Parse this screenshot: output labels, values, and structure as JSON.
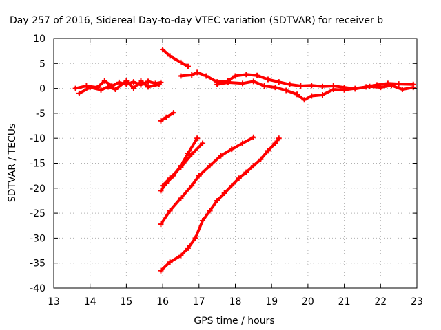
{
  "chart_data": {
    "type": "scatter",
    "title": "Day 257 of 2016, Sidereal Day-to-day VTEC variation (SDTVAR) for receiver b",
    "xlabel": "GPS time / hours",
    "ylabel": "SDTVAR / TECUs",
    "xlim": [
      13,
      23
    ],
    "ylim": [
      -40,
      10
    ],
    "xticks": [
      13,
      14,
      15,
      16,
      17,
      18,
      19,
      20,
      21,
      22,
      23
    ],
    "yticks": [
      10,
      5,
      0,
      -5,
      -10,
      -15,
      -20,
      -25,
      -30,
      -35,
      -40
    ],
    "grid": true,
    "legend": "none",
    "marker": "+",
    "color": "#ff0000",
    "series": [
      {
        "points": [
          [
            13.6,
            0.0
          ],
          [
            13.9,
            0.5
          ],
          [
            14.2,
            0.2
          ],
          [
            14.4,
            1.5
          ],
          [
            14.6,
            0.5
          ],
          [
            14.8,
            1.2
          ],
          [
            15.0,
            0.8
          ],
          [
            15.2,
            1.3
          ],
          [
            15.4,
            0.7
          ],
          [
            15.6,
            1.4
          ],
          [
            15.8,
            1.0
          ],
          [
            15.95,
            1.2
          ]
        ]
      },
      {
        "points": [
          [
            13.7,
            -1.0
          ],
          [
            14.0,
            0.2
          ],
          [
            14.3,
            -0.3
          ],
          [
            14.5,
            0.3
          ],
          [
            14.7,
            -0.2
          ],
          [
            15.0,
            1.5
          ],
          [
            15.2,
            0.0
          ],
          [
            15.4,
            1.5
          ],
          [
            15.6,
            0.3
          ],
          [
            15.9,
            0.8
          ]
        ]
      },
      {
        "points": [
          [
            16.0,
            7.8
          ],
          [
            16.2,
            6.5
          ],
          [
            16.5,
            5.2
          ],
          [
            16.7,
            4.4
          ]
        ]
      },
      {
        "points": [
          [
            16.5,
            2.5
          ],
          [
            16.8,
            2.7
          ],
          [
            16.95,
            3.2
          ],
          [
            17.2,
            2.5
          ],
          [
            17.5,
            1.3
          ],
          [
            17.8,
            1.5
          ],
          [
            18.0,
            2.5
          ],
          [
            18.3,
            2.8
          ],
          [
            18.6,
            2.6
          ],
          [
            18.9,
            1.8
          ],
          [
            19.2,
            1.3
          ],
          [
            19.5,
            0.8
          ],
          [
            19.8,
            0.5
          ],
          [
            20.1,
            0.6
          ],
          [
            20.4,
            0.4
          ],
          [
            20.7,
            0.5
          ],
          [
            21.0,
            0.2
          ],
          [
            21.3,
            -0.1
          ],
          [
            21.6,
            0.3
          ],
          [
            21.9,
            0.7
          ],
          [
            22.2,
            1.0
          ],
          [
            22.5,
            0.9
          ],
          [
            22.9,
            0.8
          ]
        ]
      },
      {
        "points": [
          [
            17.5,
            0.8
          ],
          [
            17.8,
            1.2
          ],
          [
            18.2,
            1.0
          ],
          [
            18.5,
            1.4
          ],
          [
            18.8,
            0.5
          ],
          [
            19.1,
            0.2
          ],
          [
            19.4,
            -0.4
          ],
          [
            19.7,
            -1.2
          ],
          [
            19.9,
            -2.3
          ],
          [
            20.1,
            -1.5
          ],
          [
            20.4,
            -1.3
          ],
          [
            20.7,
            -0.2
          ],
          [
            21.0,
            -0.3
          ],
          [
            21.3,
            0.0
          ],
          [
            21.7,
            0.4
          ],
          [
            22.0,
            0.2
          ],
          [
            22.3,
            0.6
          ],
          [
            22.6,
            -0.2
          ],
          [
            22.9,
            0.2
          ]
        ]
      },
      {
        "points": [
          [
            15.95,
            -6.5
          ],
          [
            16.1,
            -5.8
          ],
          [
            16.3,
            -4.9
          ]
        ]
      },
      {
        "points": [
          [
            15.95,
            -20.5
          ],
          [
            16.1,
            -19.0
          ],
          [
            16.3,
            -17.5
          ],
          [
            16.5,
            -15.5
          ],
          [
            16.7,
            -13.0
          ],
          [
            16.95,
            -10.0
          ]
        ]
      },
      {
        "points": [
          [
            16.0,
            -19.5
          ],
          [
            16.2,
            -18.0
          ],
          [
            16.5,
            -15.8
          ],
          [
            16.8,
            -13.2
          ],
          [
            17.1,
            -11.0
          ]
        ]
      },
      {
        "points": [
          [
            15.95,
            -27.2
          ],
          [
            16.2,
            -24.5
          ],
          [
            16.5,
            -22.0
          ],
          [
            16.8,
            -19.5
          ],
          [
            17.0,
            -17.5
          ],
          [
            17.3,
            -15.5
          ],
          [
            17.6,
            -13.5
          ],
          [
            17.9,
            -12.2
          ],
          [
            18.2,
            -11.0
          ],
          [
            18.5,
            -9.8
          ]
        ]
      },
      {
        "points": [
          [
            15.95,
            -36.5
          ],
          [
            16.2,
            -34.8
          ],
          [
            16.5,
            -33.5
          ],
          [
            16.7,
            -32.0
          ],
          [
            16.9,
            -30.0
          ],
          [
            17.1,
            -26.5
          ],
          [
            17.3,
            -24.5
          ],
          [
            17.5,
            -22.5
          ],
          [
            17.7,
            -21.0
          ],
          [
            17.9,
            -19.5
          ],
          [
            18.1,
            -18.0
          ],
          [
            18.3,
            -16.8
          ],
          [
            18.5,
            -15.5
          ],
          [
            18.7,
            -14.2
          ],
          [
            18.9,
            -12.5
          ],
          [
            19.1,
            -11.0
          ],
          [
            19.2,
            -10.0
          ]
        ]
      }
    ]
  }
}
